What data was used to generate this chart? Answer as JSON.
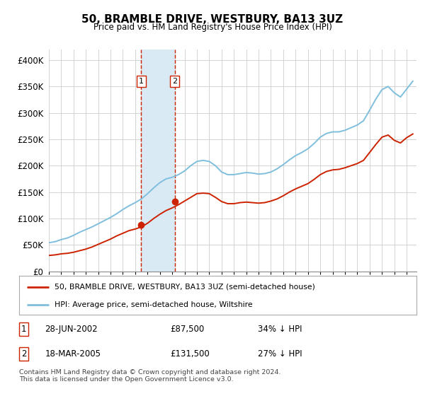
{
  "title": "50, BRAMBLE DRIVE, WESTBURY, BA13 3UZ",
  "subtitle": "Price paid vs. HM Land Registry's House Price Index (HPI)",
  "legend_line1": "50, BRAMBLE DRIVE, WESTBURY, BA13 3UZ (semi-detached house)",
  "legend_line2": "HPI: Average price, semi-detached house, Wiltshire",
  "purchase1_date": "28-JUN-2002",
  "purchase1_price": 87500,
  "purchase1_pct": "34% ↓ HPI",
  "purchase2_date": "18-MAR-2005",
  "purchase2_price": 131500,
  "purchase2_pct": "27% ↓ HPI",
  "footnote": "Contains HM Land Registry data © Crown copyright and database right 2024.\nThis data is licensed under the Open Government Licence v3.0.",
  "hpi_color": "#7fbfdd",
  "price_color": "#cc2200",
  "shaded_color": "#daeaf5",
  "vline_color": "#cc2200",
  "background_color": "#ffffff",
  "grid_color": "#cccccc",
  "ylim": [
    0,
    420000
  ],
  "yticks": [
    0,
    50000,
    100000,
    150000,
    200000,
    250000,
    300000,
    350000,
    400000
  ],
  "xlim_min": 1995.0,
  "xlim_max": 2024.8,
  "purchase1_x": 2002.49,
  "purchase2_x": 2005.21,
  "hpi_x": [
    1995,
    1995.5,
    1996,
    1996.5,
    1997,
    1997.5,
    1998,
    1998.5,
    1999,
    1999.5,
    2000,
    2000.5,
    2001,
    2001.5,
    2002,
    2002.5,
    2003,
    2003.5,
    2004,
    2004.5,
    2005,
    2005.5,
    2006,
    2006.5,
    2007,
    2007.5,
    2008,
    2008.5,
    2009,
    2009.5,
    2010,
    2010.5,
    2011,
    2011.5,
    2012,
    2012.5,
    2013,
    2013.5,
    2014,
    2014.5,
    2015,
    2015.5,
    2016,
    2016.5,
    2017,
    2017.5,
    2018,
    2018.5,
    2019,
    2019.5,
    2020,
    2020.5,
    2021,
    2021.5,
    2022,
    2022.5,
    2023,
    2023.5,
    2024,
    2024.5
  ],
  "hpi_y": [
    54000,
    56000,
    60000,
    63000,
    68000,
    74000,
    79000,
    84000,
    90000,
    96000,
    102000,
    109000,
    117000,
    124000,
    130000,
    137000,
    147000,
    158000,
    168000,
    175000,
    178000,
    183000,
    190000,
    200000,
    208000,
    210000,
    208000,
    200000,
    188000,
    183000,
    183000,
    185000,
    187000,
    186000,
    184000,
    185000,
    188000,
    194000,
    202000,
    211000,
    219000,
    225000,
    232000,
    242000,
    254000,
    261000,
    264000,
    264000,
    267000,
    272000,
    277000,
    285000,
    305000,
    326000,
    344000,
    350000,
    338000,
    330000,
    345000,
    360000
  ],
  "price_x": [
    1995,
    1995.5,
    1996,
    1996.5,
    1997,
    1997.5,
    1998,
    1998.5,
    1999,
    1999.5,
    2000,
    2000.5,
    2001,
    2001.5,
    2002,
    2002.5,
    2003,
    2003.5,
    2004,
    2004.5,
    2005,
    2005.5,
    2006,
    2006.5,
    2007,
    2007.5,
    2008,
    2008.5,
    2009,
    2009.5,
    2010,
    2010.5,
    2011,
    2011.5,
    2012,
    2012.5,
    2013,
    2013.5,
    2014,
    2014.5,
    2015,
    2015.5,
    2016,
    2016.5,
    2017,
    2017.5,
    2018,
    2018.5,
    2019,
    2019.5,
    2020,
    2020.5,
    2021,
    2021.5,
    2022,
    2022.5,
    2023,
    2023.5,
    2024,
    2024.5
  ],
  "price_y": [
    30000,
    31000,
    33000,
    34000,
    36000,
    39000,
    42000,
    46000,
    51000,
    56000,
    61000,
    67000,
    72000,
    77000,
    80000,
    84000,
    91000,
    100000,
    108000,
    115000,
    120000,
    126000,
    133000,
    140000,
    147000,
    148000,
    147000,
    140000,
    132000,
    128000,
    128000,
    130000,
    131000,
    130000,
    129000,
    130000,
    133000,
    137000,
    143000,
    150000,
    156000,
    161000,
    166000,
    174000,
    183000,
    189000,
    192000,
    193000,
    196000,
    200000,
    204000,
    210000,
    225000,
    240000,
    254000,
    258000,
    248000,
    243000,
    253000,
    260000
  ]
}
